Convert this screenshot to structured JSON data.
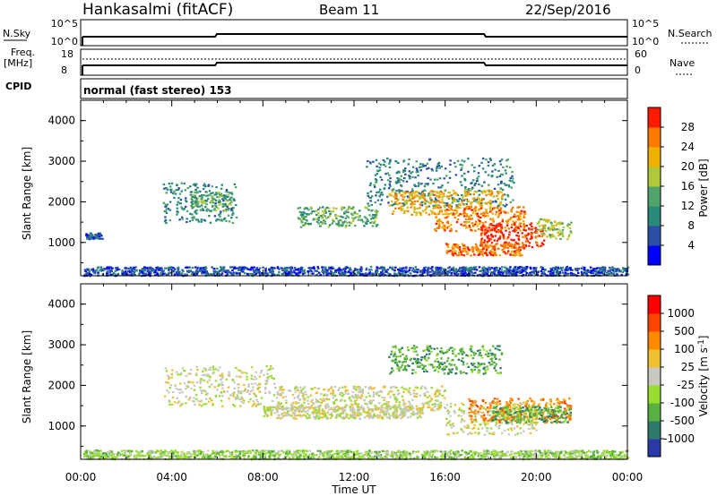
{
  "header": {
    "station": "Hankasalmi (fitACF)",
    "beam": "Beam 11",
    "date": "22/Sep/2016"
  },
  "top_panels": {
    "nsky_label": "N.Sky",
    "nsky_ticks": [
      "10^5",
      "10^0"
    ],
    "nsearch_label": "N.Search",
    "nsearch_ticks": [
      "10^5",
      "10^0"
    ],
    "freq_label_1": "Freq.",
    "freq_label_2": "[MHz]",
    "freq_ticks": [
      "18",
      "8"
    ],
    "nave_label": "Nave",
    "nave_ticks": [
      "60",
      "0"
    ],
    "cpid_label": "CPID",
    "cpid_text": "normal (fast stereo) 153"
  },
  "chart_data": [
    {
      "type": "heatmap",
      "panel": "power",
      "ylabel": "Slant Range [km]",
      "yticks": [
        "4000",
        "3000",
        "2000",
        "1000"
      ],
      "ylim": [
        180,
        4500
      ],
      "colorbar": {
        "label": "Power [dB]",
        "ticks": [
          "28",
          "24",
          "20",
          "16",
          "12",
          "8",
          "4"
        ],
        "colors": [
          "#0000ff",
          "#2b4fa8",
          "#2a8a7a",
          "#4fa46c",
          "#b0c93a",
          "#f0b000",
          "#ff7a00",
          "#ff1a00"
        ]
      },
      "regions": [
        {
          "t0": 0.1,
          "t1": 24.0,
          "r0": 200,
          "r1": 420,
          "level": 1
        },
        {
          "t0": 3.6,
          "t1": 6.8,
          "r0": 1500,
          "r1": 2500,
          "level": 2
        },
        {
          "t0": 4.8,
          "t1": 6.6,
          "r0": 1800,
          "r1": 2300,
          "level": 3
        },
        {
          "t0": 9.5,
          "t1": 13.0,
          "r0": 1400,
          "r1": 1900,
          "level": 3
        },
        {
          "t0": 12.5,
          "t1": 19.0,
          "r0": 1900,
          "r1": 3100,
          "level": 2
        },
        {
          "t0": 13.5,
          "t1": 18.5,
          "r0": 1700,
          "r1": 2300,
          "level": 5
        },
        {
          "t0": 15.5,
          "t1": 19.5,
          "r0": 1300,
          "r1": 1900,
          "level": 6
        },
        {
          "t0": 17.5,
          "t1": 20.3,
          "r0": 900,
          "r1": 1500,
          "level": 7
        },
        {
          "t0": 16.0,
          "t1": 19.5,
          "r0": 700,
          "r1": 1000,
          "level": 6
        },
        {
          "t0": 20.0,
          "t1": 21.5,
          "r0": 1100,
          "r1": 1600,
          "level": 4
        },
        {
          "t0": 0.2,
          "t1": 1.0,
          "r0": 1100,
          "r1": 1250,
          "level": 1
        }
      ]
    },
    {
      "type": "heatmap",
      "panel": "velocity",
      "ylabel": "Slant Range [km]",
      "yticks": [
        "4000",
        "3000",
        "2000",
        "1000"
      ],
      "ylim": [
        180,
        4500
      ],
      "xticks": [
        "00:00",
        "04:00",
        "08:00",
        "12:00",
        "16:00",
        "20:00",
        "00:00"
      ],
      "xlabel": "Time UT",
      "colorbar": {
        "label": "Velocity [m s^-1]",
        "ticks": [
          "1000",
          "500",
          "100",
          "25",
          "-25",
          "-100",
          "-500",
          "-1000"
        ],
        "colors": [
          "#2a3aa8",
          "#2d7a6a",
          "#58b040",
          "#99dd33",
          "#c8c8c0",
          "#f0c030",
          "#ff8a00",
          "#ff4500",
          "#ff0000"
        ]
      },
      "regions": [
        {
          "t0": 0.1,
          "t1": 24.0,
          "r0": 200,
          "r1": 420,
          "level": 3
        },
        {
          "t0": 3.6,
          "t1": 8.5,
          "r0": 1500,
          "r1": 2500,
          "level": 4
        },
        {
          "t0": 8.5,
          "t1": 16.0,
          "r0": 1400,
          "r1": 2000,
          "level": 4
        },
        {
          "t0": 13.5,
          "t1": 18.5,
          "r0": 2300,
          "r1": 3000,
          "level": 2
        },
        {
          "t0": 16.0,
          "t1": 20.0,
          "r0": 800,
          "r1": 1600,
          "level": 4
        },
        {
          "t0": 17.0,
          "t1": 21.5,
          "r0": 1100,
          "r1": 1700,
          "level": 6
        },
        {
          "t0": 18.0,
          "t1": 21.5,
          "r0": 1100,
          "r1": 1500,
          "level": 2
        },
        {
          "t0": 8.0,
          "t1": 15.0,
          "r0": 1200,
          "r1": 1500,
          "level": 4
        }
      ]
    }
  ]
}
